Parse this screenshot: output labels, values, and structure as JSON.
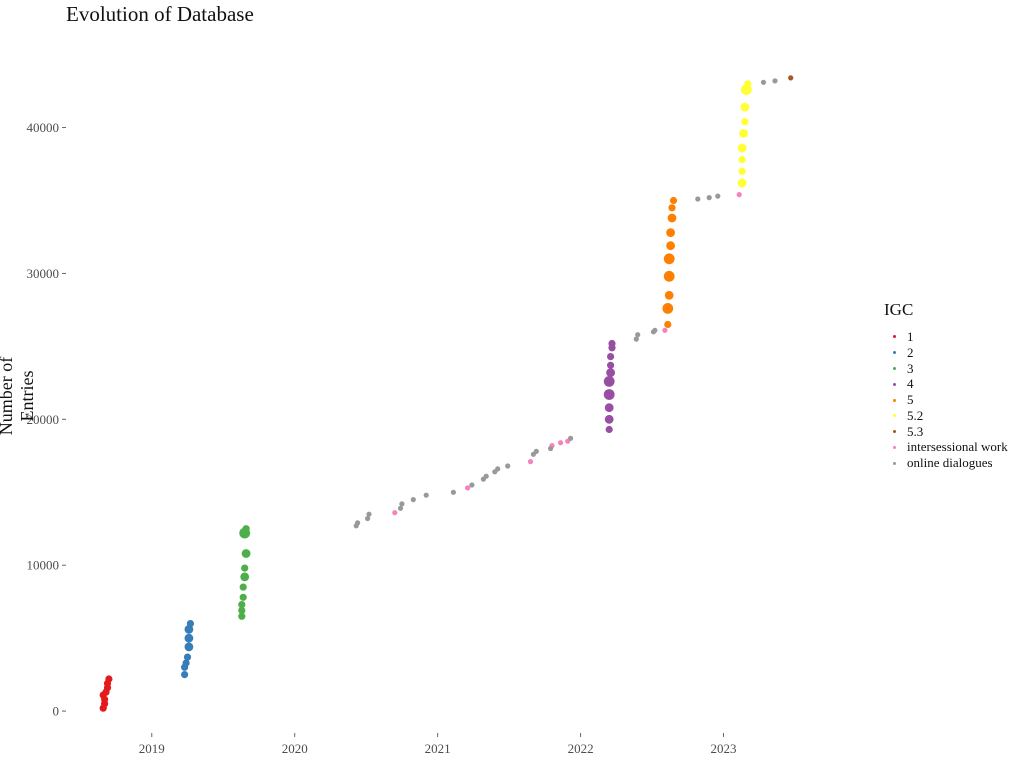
{
  "chart_data": {
    "type": "scatter",
    "title": "Evolution of Database",
    "xlabel": "",
    "ylabel": "Number of Entries",
    "xlim": [
      2018.4,
      2023.85
    ],
    "ylim": [
      -1500,
      46000
    ],
    "x_ticks": [
      {
        "value": 2019,
        "label": "2019"
      },
      {
        "value": 2020,
        "label": "2020"
      },
      {
        "value": 2021,
        "label": "2021"
      },
      {
        "value": 2022,
        "label": "2022"
      },
      {
        "value": 2023,
        "label": "2023"
      }
    ],
    "y_ticks": [
      {
        "value": 0,
        "label": "0"
      },
      {
        "value": 10000,
        "label": "10000"
      },
      {
        "value": 20000,
        "label": "20000"
      },
      {
        "value": 30000,
        "label": "30000"
      },
      {
        "value": 40000,
        "label": "40000"
      }
    ],
    "grid": false,
    "legend": {
      "title": "IGC",
      "position": "right"
    },
    "series": [
      {
        "name": "1",
        "color": "#e41a1c",
        "points": [
          [
            2018.66,
            200,
            2
          ],
          [
            2018.67,
            500,
            2
          ],
          [
            2018.67,
            800,
            2
          ],
          [
            2018.66,
            1100,
            2
          ],
          [
            2018.68,
            1300,
            2
          ],
          [
            2018.69,
            1600,
            2
          ],
          [
            2018.69,
            1900,
            2
          ],
          [
            2018.7,
            2200,
            2
          ]
        ]
      },
      {
        "name": "2",
        "color": "#377eb8",
        "points": [
          [
            2019.23,
            2500,
            2
          ],
          [
            2019.23,
            3000,
            2
          ],
          [
            2019.24,
            3300,
            2
          ],
          [
            2019.25,
            3700,
            2
          ],
          [
            2019.26,
            4400,
            3
          ],
          [
            2019.26,
            5000,
            3
          ],
          [
            2019.26,
            5600,
            3
          ],
          [
            2019.27,
            6000,
            2
          ]
        ]
      },
      {
        "name": "3",
        "color": "#4daf4a",
        "points": [
          [
            2019.63,
            6500,
            2
          ],
          [
            2019.63,
            6900,
            2
          ],
          [
            2019.63,
            7300,
            2
          ],
          [
            2019.64,
            7800,
            2
          ],
          [
            2019.64,
            8500,
            2
          ],
          [
            2019.65,
            9200,
            3
          ],
          [
            2019.65,
            9800,
            2
          ],
          [
            2019.66,
            10800,
            3
          ],
          [
            2019.65,
            12200,
            4
          ],
          [
            2019.66,
            12500,
            2
          ]
        ]
      },
      {
        "name": "4",
        "color": "#984ea3",
        "points": [
          [
            2022.2,
            19300,
            2
          ],
          [
            2022.2,
            20000,
            3
          ],
          [
            2022.2,
            20800,
            3
          ],
          [
            2022.2,
            21700,
            4
          ],
          [
            2022.2,
            22600,
            4
          ],
          [
            2022.21,
            23200,
            3
          ],
          [
            2022.21,
            23700,
            2
          ],
          [
            2022.21,
            24300,
            2
          ],
          [
            2022.22,
            24900,
            2
          ],
          [
            2022.22,
            25200,
            2
          ]
        ]
      },
      {
        "name": "5",
        "color": "#ff7f00",
        "points": [
          [
            2022.61,
            26500,
            2
          ],
          [
            2022.61,
            27600,
            4
          ],
          [
            2022.62,
            28500,
            3
          ],
          [
            2022.62,
            29800,
            4
          ],
          [
            2022.62,
            31000,
            4
          ],
          [
            2022.63,
            31900,
            3
          ],
          [
            2022.63,
            32800,
            3
          ],
          [
            2022.64,
            33800,
            3
          ],
          [
            2022.64,
            34500,
            2
          ],
          [
            2022.65,
            35000,
            2
          ]
        ]
      },
      {
        "name": "5.2",
        "color": "#ffff33",
        "points": [
          [
            2023.13,
            36200,
            3
          ],
          [
            2023.13,
            37000,
            2
          ],
          [
            2023.13,
            37800,
            2
          ],
          [
            2023.13,
            38600,
            3
          ],
          [
            2023.14,
            39600,
            3
          ],
          [
            2023.15,
            40400,
            2
          ],
          [
            2023.15,
            41400,
            3
          ],
          [
            2023.16,
            42600,
            4
          ],
          [
            2023.17,
            43000,
            2
          ]
        ]
      },
      {
        "name": "5.3",
        "color": "#a65628",
        "points": [
          [
            2023.47,
            43400,
            1
          ]
        ]
      },
      {
        "name": "intersessional work",
        "color": "#f781bf",
        "points": [
          [
            2020.7,
            13600,
            1
          ],
          [
            2021.21,
            15300,
            1
          ],
          [
            2021.65,
            17100,
            1
          ],
          [
            2021.8,
            18200,
            1
          ],
          [
            2021.86,
            18400,
            1
          ],
          [
            2021.91,
            18500,
            1
          ],
          [
            2022.59,
            26100,
            1
          ],
          [
            2023.11,
            35400,
            1
          ]
        ]
      },
      {
        "name": "online dialogues",
        "color": "#999999",
        "points": [
          [
            2020.43,
            12700,
            1
          ],
          [
            2020.44,
            12900,
            1
          ],
          [
            2020.51,
            13200,
            1
          ],
          [
            2020.52,
            13500,
            1
          ],
          [
            2020.74,
            13900,
            1
          ],
          [
            2020.75,
            14200,
            1
          ],
          [
            2020.83,
            14500,
            1
          ],
          [
            2020.92,
            14800,
            1
          ],
          [
            2021.11,
            15000,
            1
          ],
          [
            2021.24,
            15500,
            1
          ],
          [
            2021.32,
            15900,
            1
          ],
          [
            2021.34,
            16100,
            1
          ],
          [
            2021.4,
            16400,
            1
          ],
          [
            2021.42,
            16600,
            1
          ],
          [
            2021.49,
            16800,
            1
          ],
          [
            2021.67,
            17600,
            1
          ],
          [
            2021.69,
            17800,
            1
          ],
          [
            2021.79,
            18000,
            1
          ],
          [
            2021.93,
            18700,
            1
          ],
          [
            2022.39,
            25500,
            1
          ],
          [
            2022.4,
            25800,
            1
          ],
          [
            2022.51,
            26000,
            1
          ],
          [
            2022.52,
            26100,
            1
          ],
          [
            2022.82,
            35100,
            1
          ],
          [
            2022.9,
            35200,
            1
          ],
          [
            2022.96,
            35300,
            1
          ],
          [
            2023.28,
            43100,
            1
          ],
          [
            2023.36,
            43200,
            1
          ]
        ]
      }
    ]
  }
}
